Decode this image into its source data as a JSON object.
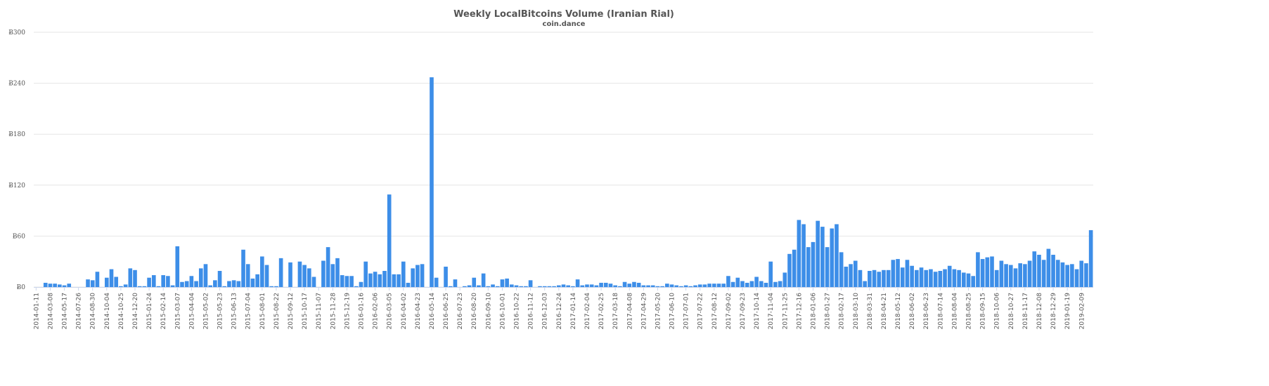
{
  "chart_data": {
    "type": "bar",
    "title": "Weekly LocalBitcoins Volume (Iranian Rial)",
    "subtitle": "coin.dance",
    "color": "#3d8ee8",
    "grid": true,
    "ylim": [
      0,
      300
    ],
    "yticks": [
      {
        "value": 0,
        "label": "Ƀ0"
      },
      {
        "value": 60,
        "label": "Ƀ60"
      },
      {
        "value": 120,
        "label": "Ƀ120"
      },
      {
        "value": 180,
        "label": "Ƀ180"
      },
      {
        "value": 240,
        "label": "Ƀ240"
      },
      {
        "value": 300,
        "label": "Ƀ300"
      }
    ],
    "categories": [
      "2014-01-11",
      null,
      null,
      "2014-03-08",
      null,
      null,
      "2014-05-17",
      null,
      null,
      "2014-07-26",
      null,
      null,
      "2014-08-30",
      null,
      null,
      "2014-10-04",
      null,
      null,
      "2014-10-25",
      null,
      null,
      "2014-12-20",
      null,
      null,
      "2015-01-24",
      null,
      null,
      "2015-02-14",
      null,
      null,
      "2015-03-07",
      null,
      null,
      "2015-04-04",
      null,
      null,
      "2015-05-02",
      null,
      null,
      "2015-05-23",
      null,
      null,
      "2015-06-13",
      null,
      null,
      "2015-07-04",
      null,
      null,
      "2015-08-01",
      null,
      null,
      "2015-08-22",
      null,
      null,
      "2015-09-12",
      null,
      null,
      "2015-10-17",
      null,
      null,
      "2015-11-07",
      null,
      null,
      "2015-11-28",
      null,
      null,
      "2015-12-19",
      null,
      null,
      "2016-01-16",
      null,
      null,
      "2016-02-06",
      null,
      null,
      "2016-03-05",
      null,
      null,
      "2016-04-02",
      null,
      null,
      "2016-04-23",
      null,
      null,
      "2016-05-14",
      null,
      null,
      "2016-06-25",
      null,
      null,
      "2016-07-23",
      null,
      null,
      "2016-08-20",
      null,
      null,
      "2016-09-10",
      null,
      null,
      "2016-10-01",
      null,
      null,
      "2016-10-22",
      null,
      null,
      "2016-11-12",
      null,
      null,
      "2016-12-03",
      null,
      null,
      "2016-12-24",
      null,
      null,
      "2017-01-14",
      null,
      null,
      "2017-02-04",
      null,
      null,
      "2017-02-25",
      null,
      null,
      "2017-03-18",
      null,
      null,
      "2017-04-08",
      null,
      null,
      "2017-04-29",
      null,
      null,
      "2017-05-20",
      null,
      null,
      "2017-06-10",
      null,
      null,
      "2017-07-01",
      null,
      null,
      "2017-07-22",
      null,
      null,
      "2017-08-12",
      null,
      null,
      "2017-09-02",
      null,
      null,
      "2017-09-23",
      null,
      null,
      "2017-10-14",
      null,
      null,
      "2017-11-04",
      null,
      null,
      "2017-11-25",
      null,
      null,
      "2017-12-16",
      null,
      null,
      "2018-01-06",
      null,
      null,
      "2018-01-27",
      null,
      null,
      "2018-02-17",
      null,
      null,
      "2018-03-10",
      null,
      null,
      "2018-03-31",
      null,
      null,
      "2018-04-21",
      null,
      null,
      "2018-05-12",
      null,
      null,
      "2018-06-02",
      null,
      null,
      "2018-06-23",
      null,
      null,
      "2018-07-14",
      null,
      null,
      "2018-08-04",
      null,
      null,
      "2018-08-25",
      null,
      null,
      "2018-09-15",
      null,
      null,
      "2018-10-06",
      null,
      null,
      "2018-10-27",
      null,
      null,
      "2018-11-17",
      null,
      null,
      "2018-12-08",
      null,
      null,
      "2018-12-29",
      null,
      null,
      "2019-01-19",
      null,
      null,
      "2019-02-09",
      null,
      null
    ],
    "values": [
      0,
      0,
      5,
      4,
      4,
      3,
      2,
      4,
      0,
      0,
      0,
      9,
      8,
      18,
      0,
      11,
      21,
      12,
      1,
      3,
      22,
      20,
      1,
      1,
      11,
      14,
      1,
      14,
      13,
      2,
      48,
      6,
      7,
      13,
      7,
      22,
      27,
      2,
      8,
      19,
      1,
      7,
      8,
      7,
      44,
      27,
      10,
      15,
      36,
      26,
      1,
      1,
      34,
      0,
      29,
      0,
      30,
      26,
      22,
      12,
      0,
      31,
      47,
      27,
      34,
      14,
      13,
      13,
      1,
      6,
      30,
      16,
      18,
      15,
      19,
      109,
      15,
      15,
      30,
      5,
      22,
      26,
      27,
      0,
      247,
      11,
      0,
      24,
      1,
      9,
      0,
      1,
      2,
      11,
      2,
      16,
      1,
      3,
      1,
      9,
      10,
      3,
      2,
      1,
      1,
      8,
      0,
      1,
      1,
      1,
      1,
      2,
      3,
      2,
      1,
      9,
      2,
      3,
      3,
      2,
      5,
      5,
      4,
      2,
      1,
      6,
      4,
      6,
      5,
      2,
      2,
      2,
      1,
      1,
      4,
      3,
      2,
      1,
      2,
      1,
      2,
      3,
      3,
      4,
      4,
      4,
      4,
      13,
      6,
      11,
      7,
      5,
      7,
      12,
      7,
      5,
      30,
      6,
      7,
      17,
      39,
      44,
      79,
      74,
      47,
      53,
      78,
      71,
      47,
      69,
      74,
      41,
      24,
      27,
      31,
      20,
      7,
      19,
      20,
      18,
      20,
      20,
      32,
      33,
      23,
      32,
      25,
      20,
      23,
      20,
      21,
      18,
      19,
      21,
      25,
      21,
      20,
      17,
      16,
      13,
      41,
      33,
      35,
      36,
      20,
      31,
      27,
      26,
      22,
      28,
      27,
      31,
      42,
      38,
      32,
      45,
      38,
      32,
      29,
      26,
      27,
      21,
      31,
      28,
      67
    ]
  }
}
